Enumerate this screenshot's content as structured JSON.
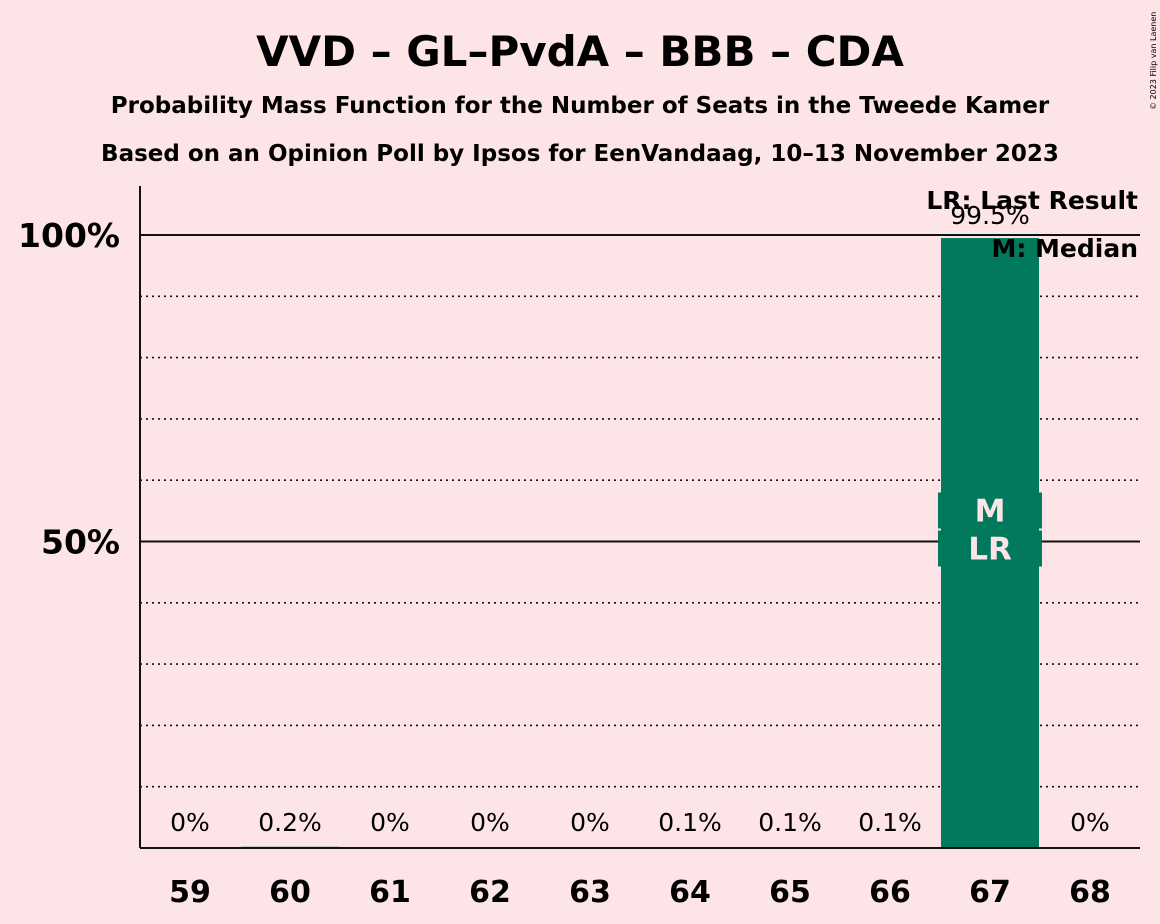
{
  "chart_data": {
    "type": "bar",
    "title": "VVD – GL–PvdA – BBB – CDA",
    "subtitle_1": "Probability Mass Function for the Number of Seats in the Tweede Kamer",
    "subtitle_2": "Based on an Opinion Poll by Ipsos for EenVandaag, 10–13 November 2023",
    "categories": [
      "59",
      "60",
      "61",
      "62",
      "63",
      "64",
      "65",
      "66",
      "67",
      "68"
    ],
    "values": [
      0,
      0.2,
      0,
      0,
      0,
      0.1,
      0.1,
      0.1,
      99.5,
      0
    ],
    "data_labels": [
      "0%",
      "0.2%",
      "0%",
      "0%",
      "0%",
      "0.1%",
      "0.1%",
      "0.1%",
      "99.5%",
      "0%"
    ],
    "y_tick_labels": [
      {
        "value": 50,
        "label": "50%"
      },
      {
        "value": 100,
        "label": "100%"
      }
    ],
    "ylim": [
      0,
      108
    ],
    "gridlines_dotted_every": 10,
    "gridlines_solid": [
      50,
      100
    ],
    "bar_color": "#00795d",
    "background_color": "#fce4e7",
    "bar_annotations": [
      {
        "category": "67",
        "lines": [
          "M",
          "LR"
        ]
      }
    ],
    "legend": {
      "placement": "top-right",
      "items": [
        "LR: Last Result",
        "M: Median"
      ]
    },
    "credit": "© 2023 Filip van Laenen"
  }
}
